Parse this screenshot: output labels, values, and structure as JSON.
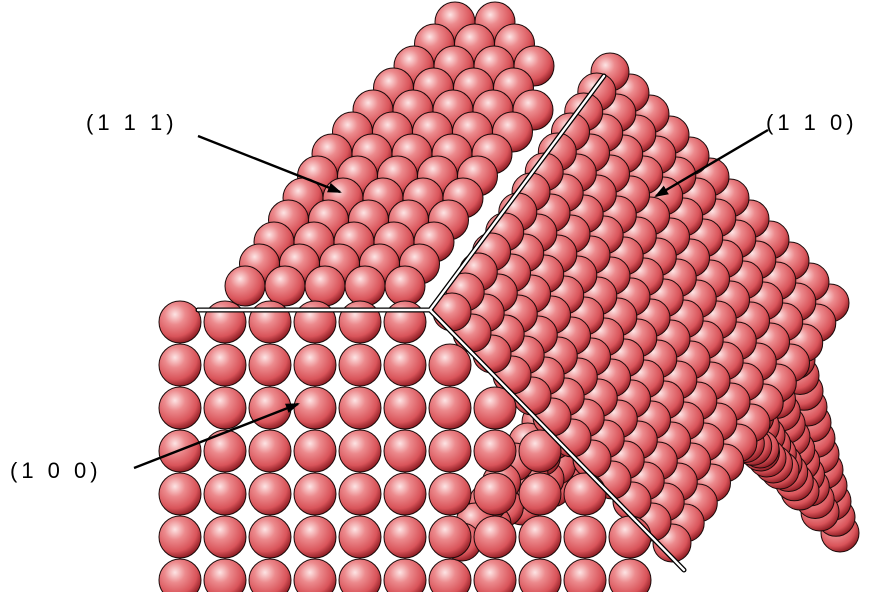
{
  "labels": {
    "face_111": "(1 1 1)",
    "face_110": "(1 1 0)",
    "face_100": "(1 0 0)"
  },
  "colors": {
    "atom_base": "#d9545a",
    "atom_highlight": "#fde4e4",
    "atom_shadow": "#8f1d24",
    "atom_outline": "#1a0a0a",
    "edge_line": "#ffffff",
    "edge_outline": "#000000",
    "arrow": "#000000",
    "background": "#ffffff"
  },
  "icons": {
    "atom": "sphere",
    "pointer": "arrow"
  }
}
